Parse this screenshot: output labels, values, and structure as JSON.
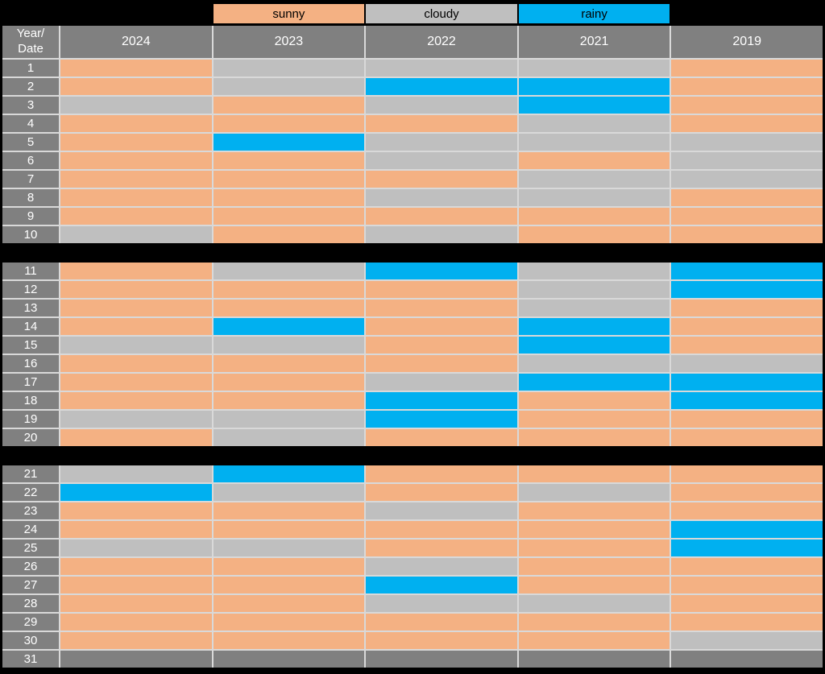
{
  "page": {
    "background": "#000000"
  },
  "legend": {
    "items": [
      {
        "label": "sunny",
        "color": "#F4B183"
      },
      {
        "label": "cloudy",
        "color": "#BFBFBF"
      },
      {
        "label": "rainy",
        "color": "#00B0F0"
      }
    ]
  },
  "table": {
    "corner_line1": "Year/",
    "corner_line2": "Date",
    "years": [
      "2024",
      "2023",
      "2022",
      "2021",
      "2019"
    ],
    "header_bg": "#808080",
    "gridline_color": "#D9D9D9",
    "row_groups": [
      [
        1,
        10
      ],
      [
        11,
        20
      ],
      [
        21,
        31
      ]
    ]
  },
  "chart_data": {
    "type": "heatmap",
    "title": "",
    "xlabel": "Year",
    "ylabel": "Date",
    "x_categories": [
      "2024",
      "2023",
      "2022",
      "2021",
      "2019"
    ],
    "y_categories": [
      "1",
      "2",
      "3",
      "4",
      "5",
      "6",
      "7",
      "8",
      "9",
      "10",
      "11",
      "12",
      "13",
      "14",
      "15",
      "16",
      "17",
      "18",
      "19",
      "20",
      "21",
      "22",
      "23",
      "24",
      "25",
      "26",
      "27",
      "28",
      "29",
      "30",
      "31"
    ],
    "legend": [
      "sunny",
      "cloudy",
      "rainy"
    ],
    "legend_position": "top",
    "cell_colors": {
      "sunny": "#F4B183",
      "cloudy": "#BFBFBF",
      "rainy": "#00B0F0",
      "empty": "#808080"
    },
    "values": [
      [
        "sunny",
        "cloudy",
        "cloudy",
        "cloudy",
        "sunny"
      ],
      [
        "sunny",
        "cloudy",
        "rainy",
        "rainy",
        "sunny"
      ],
      [
        "cloudy",
        "sunny",
        "cloudy",
        "rainy",
        "sunny"
      ],
      [
        "sunny",
        "sunny",
        "sunny",
        "cloudy",
        "sunny"
      ],
      [
        "sunny",
        "rainy",
        "cloudy",
        "cloudy",
        "cloudy"
      ],
      [
        "sunny",
        "sunny",
        "cloudy",
        "sunny",
        "cloudy"
      ],
      [
        "sunny",
        "sunny",
        "sunny",
        "cloudy",
        "cloudy"
      ],
      [
        "sunny",
        "sunny",
        "cloudy",
        "cloudy",
        "sunny"
      ],
      [
        "sunny",
        "sunny",
        "sunny",
        "sunny",
        "sunny"
      ],
      [
        "cloudy",
        "sunny",
        "cloudy",
        "sunny",
        "sunny"
      ],
      [
        "sunny",
        "cloudy",
        "rainy",
        "cloudy",
        "rainy"
      ],
      [
        "sunny",
        "sunny",
        "sunny",
        "cloudy",
        "rainy"
      ],
      [
        "sunny",
        "sunny",
        "sunny",
        "cloudy",
        "sunny"
      ],
      [
        "sunny",
        "rainy",
        "sunny",
        "rainy",
        "sunny"
      ],
      [
        "cloudy",
        "cloudy",
        "sunny",
        "rainy",
        "sunny"
      ],
      [
        "sunny",
        "sunny",
        "sunny",
        "cloudy",
        "cloudy"
      ],
      [
        "sunny",
        "sunny",
        "cloudy",
        "rainy",
        "rainy"
      ],
      [
        "sunny",
        "sunny",
        "rainy",
        "sunny",
        "rainy"
      ],
      [
        "cloudy",
        "cloudy",
        "rainy",
        "sunny",
        "sunny"
      ],
      [
        "sunny",
        "cloudy",
        "sunny",
        "sunny",
        "sunny"
      ],
      [
        "cloudy",
        "rainy",
        "sunny",
        "sunny",
        "sunny"
      ],
      [
        "rainy",
        "cloudy",
        "sunny",
        "cloudy",
        "sunny"
      ],
      [
        "sunny",
        "sunny",
        "cloudy",
        "sunny",
        "sunny"
      ],
      [
        "sunny",
        "sunny",
        "sunny",
        "sunny",
        "rainy"
      ],
      [
        "cloudy",
        "cloudy",
        "sunny",
        "sunny",
        "rainy"
      ],
      [
        "sunny",
        "sunny",
        "cloudy",
        "sunny",
        "sunny"
      ],
      [
        "sunny",
        "sunny",
        "rainy",
        "sunny",
        "sunny"
      ],
      [
        "sunny",
        "sunny",
        "cloudy",
        "cloudy",
        "sunny"
      ],
      [
        "sunny",
        "sunny",
        "sunny",
        "sunny",
        "sunny"
      ],
      [
        "sunny",
        "sunny",
        "sunny",
        "sunny",
        "cloudy"
      ],
      [
        "empty",
        "empty",
        "empty",
        "empty",
        "empty"
      ]
    ]
  }
}
